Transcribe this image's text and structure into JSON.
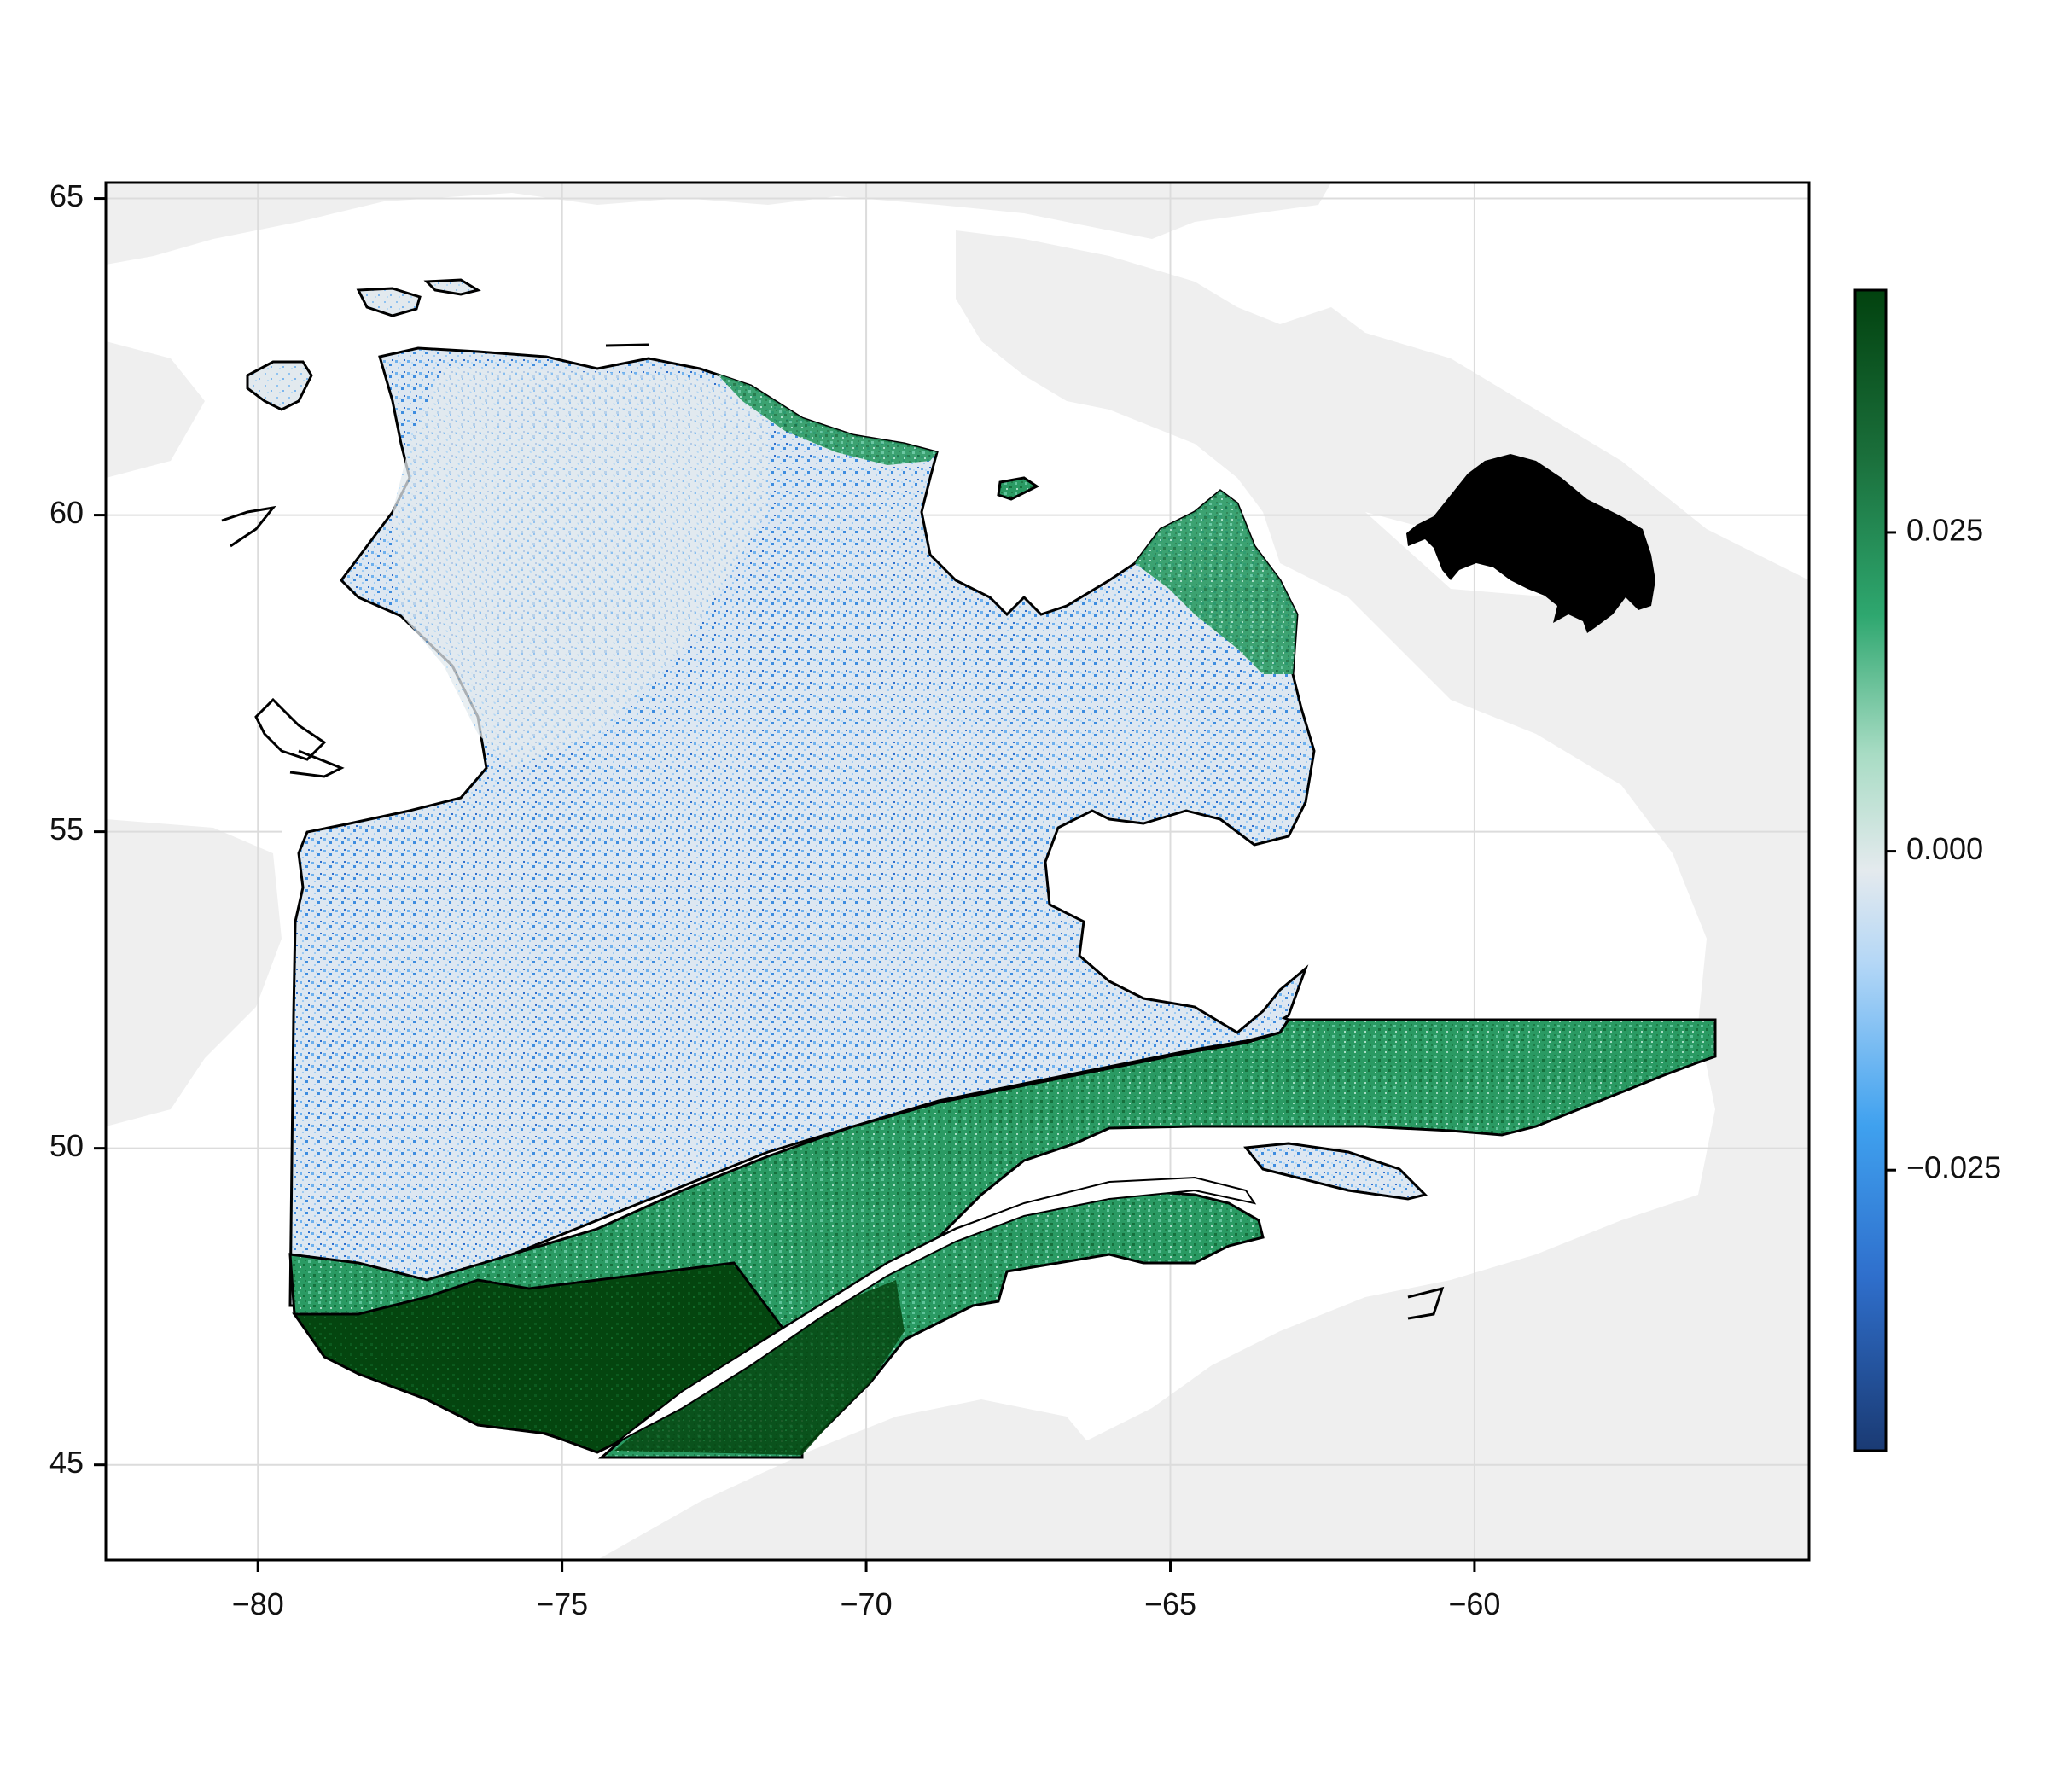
{
  "map": {
    "x_axis": {
      "range": [
        -82.5,
        -54.5
      ],
      "ticks": [
        {
          "value": -80,
          "label": "−80"
        },
        {
          "value": -75,
          "label": "−75"
        },
        {
          "value": -70,
          "label": "−70"
        },
        {
          "value": -65,
          "label": "−65"
        },
        {
          "value": -60,
          "label": "−60"
        }
      ]
    },
    "y_axis": {
      "range": [
        43.5,
        65.25
      ],
      "ticks": [
        {
          "value": 45,
          "label": "45"
        },
        {
          "value": 50,
          "label": "50"
        },
        {
          "value": 55,
          "label": "55"
        },
        {
          "value": 60,
          "label": "60"
        },
        {
          "value": 65,
          "label": "65"
        }
      ]
    },
    "grid": true,
    "background_land_color": "#efefef",
    "outline_color": "#000000",
    "silhouette_icon": "mammal-silhouette-icon"
  },
  "colorbar": {
    "range": [
      -0.047,
      0.044
    ],
    "ticks": [
      {
        "value": 0.025,
        "label": "0.025"
      },
      {
        "value": 0.0,
        "label": "0.000"
      },
      {
        "value": -0.025,
        "label": "−0.025"
      }
    ],
    "colors": [
      "#1a3a73",
      "#2f6fcc",
      "#3fa1ef",
      "#b4d7f6",
      "#e4eaee",
      "#a8dcc4",
      "#2ea76f",
      "#1a6e3a",
      "#02420f"
    ]
  }
}
